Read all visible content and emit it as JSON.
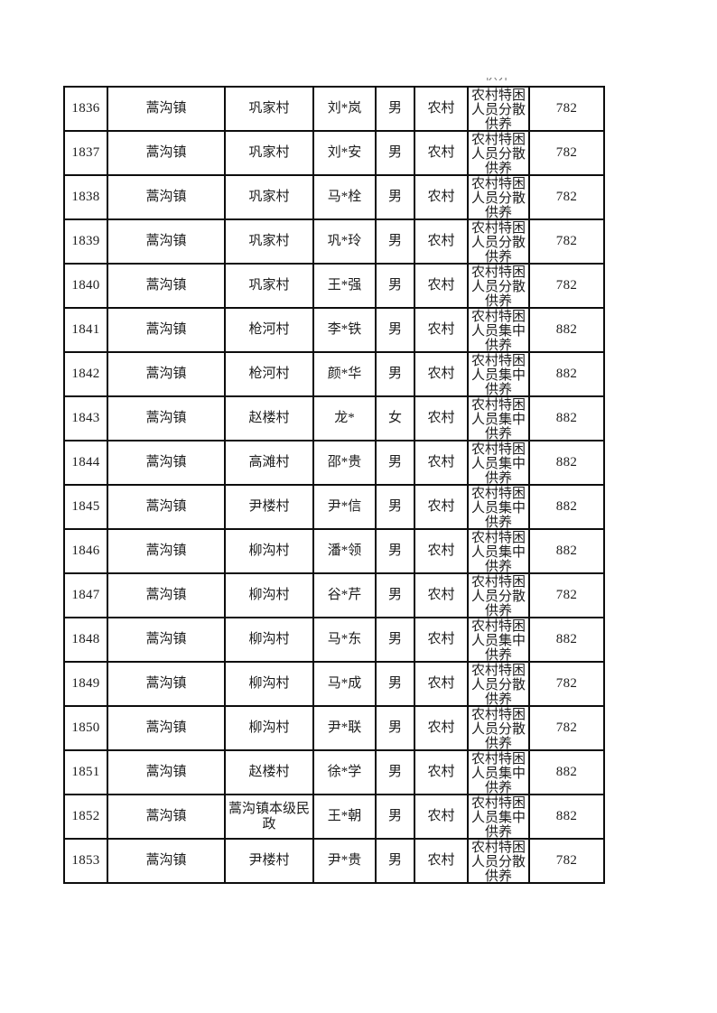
{
  "page": {
    "background": "#ffffff",
    "border_color": "#0d0d0d",
    "text_color": "#1d1d1d"
  },
  "table": {
    "carryover_text": "供养",
    "column_keys": [
      "seq",
      "town",
      "unit",
      "person",
      "gender",
      "area",
      "category",
      "amount"
    ],
    "rows": [
      {
        "seq": "1836",
        "town": "蒿沟镇",
        "unit": "巩家村",
        "person": "刘*岚",
        "gender": "男",
        "area": "农村",
        "category": "农村特困人员分散供养",
        "amount": "782"
      },
      {
        "seq": "1837",
        "town": "蒿沟镇",
        "unit": "巩家村",
        "person": "刘*安",
        "gender": "男",
        "area": "农村",
        "category": "农村特困人员分散供养",
        "amount": "782"
      },
      {
        "seq": "1838",
        "town": "蒿沟镇",
        "unit": "巩家村",
        "person": "马*栓",
        "gender": "男",
        "area": "农村",
        "category": "农村特困人员分散供养",
        "amount": "782"
      },
      {
        "seq": "1839",
        "town": "蒿沟镇",
        "unit": "巩家村",
        "person": "巩*玲",
        "gender": "男",
        "area": "农村",
        "category": "农村特困人员分散供养",
        "amount": "782"
      },
      {
        "seq": "1840",
        "town": "蒿沟镇",
        "unit": "巩家村",
        "person": "王*强",
        "gender": "男",
        "area": "农村",
        "category": "农村特困人员分散供养",
        "amount": "782"
      },
      {
        "seq": "1841",
        "town": "蒿沟镇",
        "unit": "枪河村",
        "person": "李*铁",
        "gender": "男",
        "area": "农村",
        "category": "农村特困人员集中供养",
        "amount": "882"
      },
      {
        "seq": "1842",
        "town": "蒿沟镇",
        "unit": "枪河村",
        "person": "颜*华",
        "gender": "男",
        "area": "农村",
        "category": "农村特困人员集中供养",
        "amount": "882"
      },
      {
        "seq": "1843",
        "town": "蒿沟镇",
        "unit": "赵楼村",
        "person": "龙*",
        "gender": "女",
        "area": "农村",
        "category": "农村特困人员集中供养",
        "amount": "882"
      },
      {
        "seq": "1844",
        "town": "蒿沟镇",
        "unit": "高滩村",
        "person": "邵*贵",
        "gender": "男",
        "area": "农村",
        "category": "农村特困人员集中供养",
        "amount": "882"
      },
      {
        "seq": "1845",
        "town": "蒿沟镇",
        "unit": "尹楼村",
        "person": "尹*信",
        "gender": "男",
        "area": "农村",
        "category": "农村特困人员集中供养",
        "amount": "882"
      },
      {
        "seq": "1846",
        "town": "蒿沟镇",
        "unit": "柳沟村",
        "person": "潘*领",
        "gender": "男",
        "area": "农村",
        "category": "农村特困人员集中供养",
        "amount": "882"
      },
      {
        "seq": "1847",
        "town": "蒿沟镇",
        "unit": "柳沟村",
        "person": "谷*芹",
        "gender": "男",
        "area": "农村",
        "category": "农村特困人员分散供养",
        "amount": "782"
      },
      {
        "seq": "1848",
        "town": "蒿沟镇",
        "unit": "柳沟村",
        "person": "马*东",
        "gender": "男",
        "area": "农村",
        "category": "农村特困人员集中供养",
        "amount": "882"
      },
      {
        "seq": "1849",
        "town": "蒿沟镇",
        "unit": "柳沟村",
        "person": "马*成",
        "gender": "男",
        "area": "农村",
        "category": "农村特困人员分散供养",
        "amount": "782"
      },
      {
        "seq": "1850",
        "town": "蒿沟镇",
        "unit": "柳沟村",
        "person": "尹*联",
        "gender": "男",
        "area": "农村",
        "category": "农村特困人员分散供养",
        "amount": "782"
      },
      {
        "seq": "1851",
        "town": "蒿沟镇",
        "unit": "赵楼村",
        "person": "徐*学",
        "gender": "男",
        "area": "农村",
        "category": "农村特困人员集中供养",
        "amount": "882"
      },
      {
        "seq": "1852",
        "town": "蒿沟镇",
        "unit": "蒿沟镇本级民政",
        "person": "王*朝",
        "gender": "男",
        "area": "农村",
        "category": "农村特困人员集中供养",
        "amount": "882"
      },
      {
        "seq": "1853",
        "town": "蒿沟镇",
        "unit": "尹楼村",
        "person": "尹*贵",
        "gender": "男",
        "area": "农村",
        "category": "农村特困人员分散供养",
        "amount": "782"
      }
    ]
  }
}
